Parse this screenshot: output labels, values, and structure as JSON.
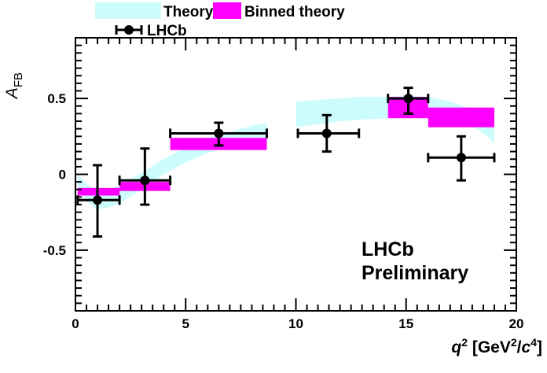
{
  "chart_data": {
    "type": "scatter",
    "xlabel": {
      "var": "q",
      "sup": "2",
      "pre": "[GeV",
      "sup2": "2",
      "mid": "/",
      "var2": "c",
      "sup3": "4",
      "post": "]"
    },
    "ylabel": {
      "var": "A",
      "sub": "FB"
    },
    "xlim": [
      0,
      20
    ],
    "ylim": [
      -0.9,
      0.9
    ],
    "x_ticks": [
      0,
      5,
      10,
      15,
      20
    ],
    "x_tick_labels": [
      "0",
      "5",
      "10",
      "15",
      "20"
    ],
    "y_ticks": [
      -0.5,
      0,
      0.5
    ],
    "y_tick_labels": [
      "-0.5",
      "0",
      "0.5"
    ],
    "legend": {
      "placement": "top-left, outside plot",
      "theory_label": "Theory",
      "binned_label": "Binned theory",
      "lhcb_label": "LHCb"
    },
    "annotation": {
      "line1": "LHCb",
      "line2": "Preliminary"
    },
    "colors": {
      "theory": "#ccfcfc",
      "binned": "#ff00ff",
      "data": "#000000"
    },
    "theory_band": [
      {
        "x": 0.1,
        "lo": -0.1,
        "hi": 0.0
      },
      {
        "x": 0.5,
        "lo": -0.18,
        "hi": -0.06
      },
      {
        "x": 1.0,
        "lo": -0.23,
        "hi": -0.11
      },
      {
        "x": 1.5,
        "lo": -0.22,
        "hi": -0.1
      },
      {
        "x": 2.0,
        "lo": -0.19,
        "hi": -0.07
      },
      {
        "x": 3.0,
        "lo": -0.1,
        "hi": 0.01
      },
      {
        "x": 4.0,
        "lo": 0.0,
        "hi": 0.1
      },
      {
        "x": 5.0,
        "lo": 0.08,
        "hi": 0.18
      },
      {
        "x": 6.0,
        "lo": 0.14,
        "hi": 0.24
      },
      {
        "x": 7.0,
        "lo": 0.19,
        "hi": 0.28
      },
      {
        "x": 8.0,
        "lo": 0.22,
        "hi": 0.32
      },
      {
        "x": 8.7,
        "lo": 0.24,
        "hi": 0.34
      },
      {
        "x": 10.0,
        "lo": 0.31,
        "hi": 0.48
      },
      {
        "x": 11.0,
        "lo": 0.33,
        "hi": 0.49
      },
      {
        "x": 12.0,
        "lo": 0.35,
        "hi": 0.5
      },
      {
        "x": 12.8,
        "lo": 0.36,
        "hi": 0.51
      },
      {
        "x": 14.2,
        "lo": 0.37,
        "hi": 0.51
      },
      {
        "x": 15.0,
        "lo": 0.39,
        "hi": 0.52
      },
      {
        "x": 16.0,
        "lo": 0.4,
        "hi": 0.51
      },
      {
        "x": 17.0,
        "lo": 0.38,
        "hi": 0.48
      },
      {
        "x": 18.0,
        "lo": 0.32,
        "hi": 0.43
      },
      {
        "x": 18.6,
        "lo": 0.26,
        "hi": 0.38
      },
      {
        "x": 19.0,
        "lo": 0.2,
        "hi": 0.32
      }
    ],
    "binned_theory": [
      {
        "x_lo": 0.1,
        "x_hi": 2.0,
        "lo": -0.14,
        "hi": -0.09
      },
      {
        "x_lo": 2.0,
        "x_hi": 4.3,
        "lo": -0.11,
        "hi": -0.05
      },
      {
        "x_lo": 4.3,
        "x_hi": 8.68,
        "lo": 0.16,
        "hi": 0.24
      },
      {
        "x_lo": 14.18,
        "x_hi": 16.0,
        "lo": 0.37,
        "hi": 0.51
      },
      {
        "x_lo": 16.0,
        "x_hi": 19.0,
        "lo": 0.31,
        "hi": 0.44
      }
    ],
    "series": [
      {
        "name": "LHCb",
        "points": [
          {
            "x": 1.0,
            "xlo": 0.1,
            "xhi": 2.0,
            "y": -0.17,
            "ylo": -0.41,
            "yhi": 0.06
          },
          {
            "x": 3.15,
            "xlo": 2.0,
            "xhi": 4.3,
            "y": -0.04,
            "ylo": -0.2,
            "yhi": 0.17
          },
          {
            "x": 6.5,
            "xlo": 4.3,
            "xhi": 8.68,
            "y": 0.27,
            "ylo": 0.19,
            "yhi": 0.34
          },
          {
            "x": 11.4,
            "xlo": 10.09,
            "xhi": 12.86,
            "y": 0.27,
            "ylo": 0.15,
            "yhi": 0.39
          },
          {
            "x": 15.1,
            "xlo": 14.18,
            "xhi": 16.0,
            "y": 0.5,
            "ylo": 0.4,
            "yhi": 0.57
          },
          {
            "x": 17.5,
            "xlo": 16.0,
            "xhi": 19.0,
            "y": 0.11,
            "ylo": -0.04,
            "yhi": 0.25
          }
        ]
      }
    ]
  }
}
